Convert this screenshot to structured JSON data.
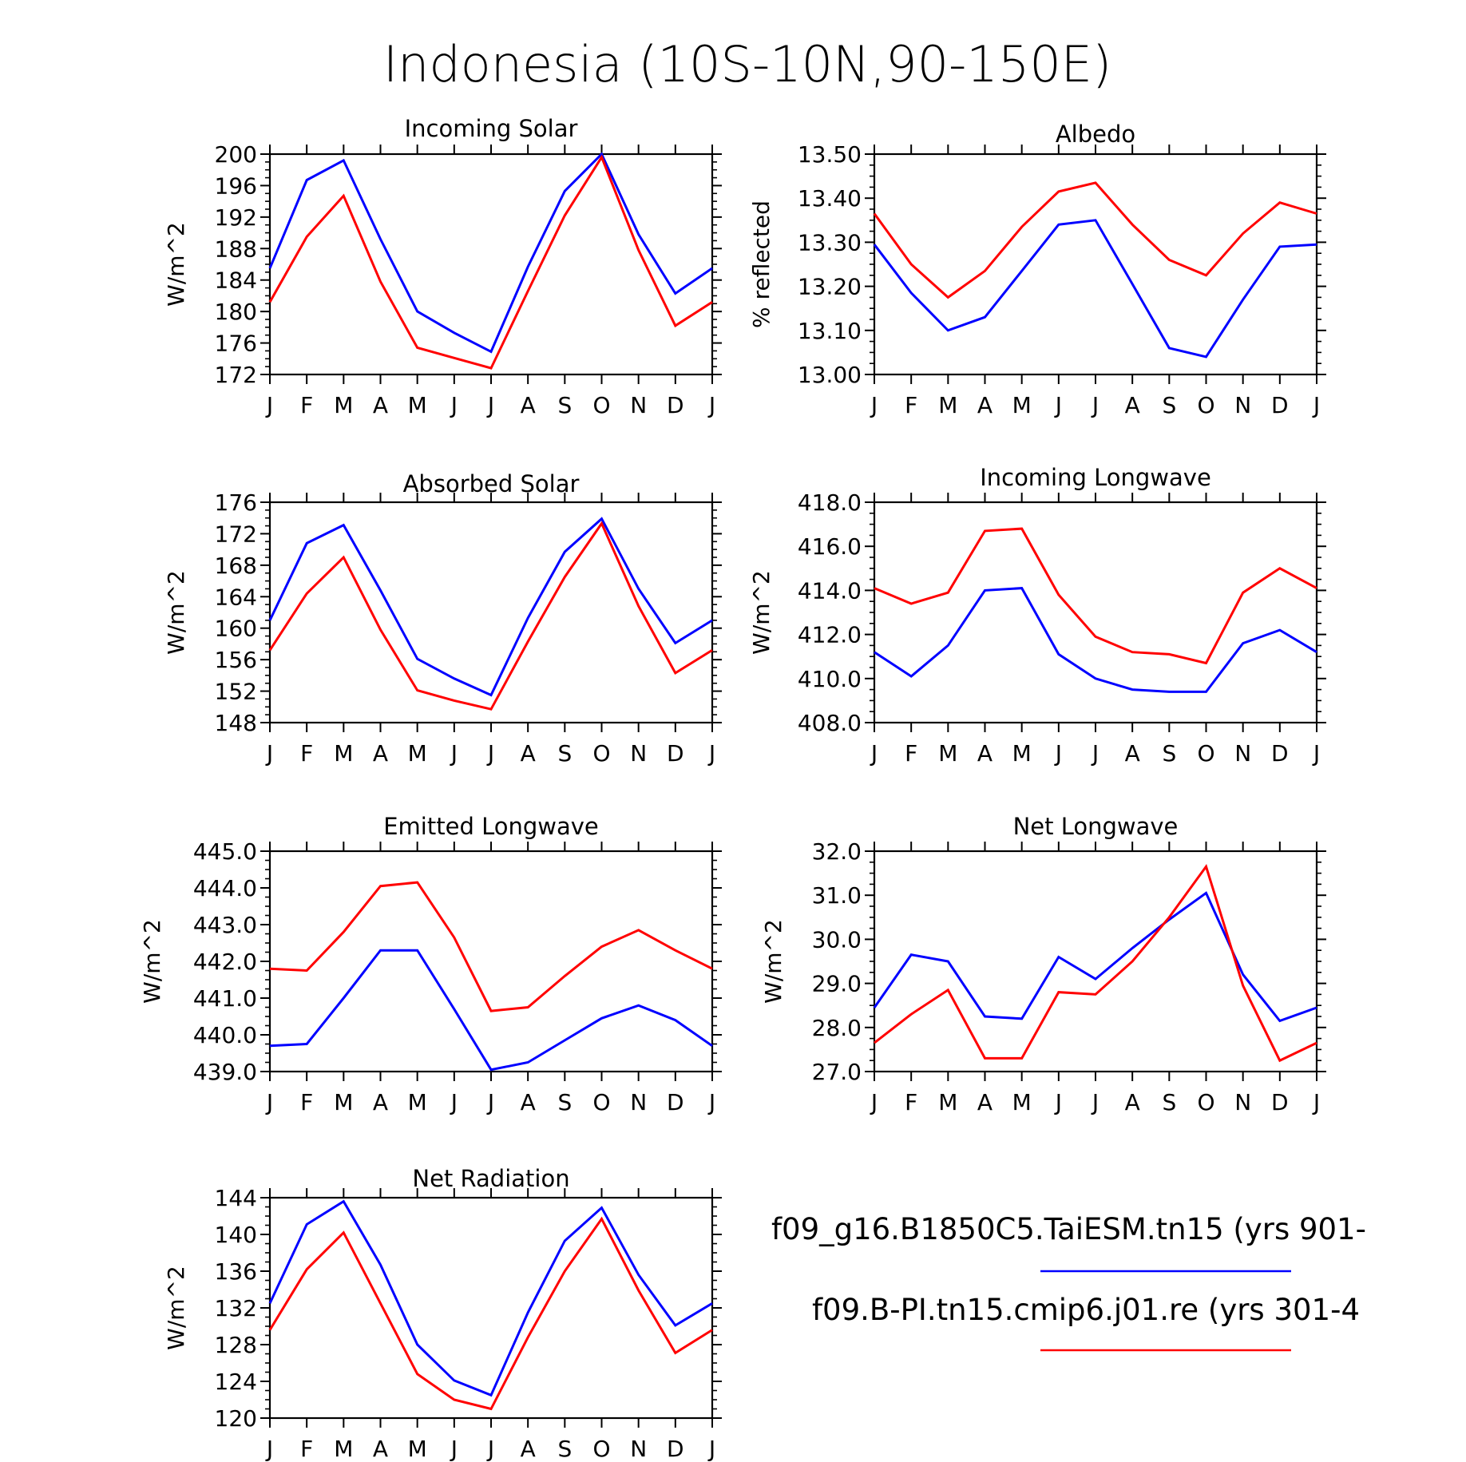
{
  "title": "Indonesia (10S-10N,90-150E)",
  "month_labels": [
    "J",
    "F",
    "M",
    "A",
    "M",
    "J",
    "J",
    "A",
    "S",
    "O",
    "N",
    "D",
    "J"
  ],
  "legend": [
    {
      "label": "f09_g16.B1850C5.TaiESM.tn15 (yrs 901-",
      "color": "#0000ff"
    },
    {
      "label": "f09.B-PI.tn15.cmip6.j01.re (yrs 301-4",
      "color": "#ff0000"
    }
  ],
  "colors": {
    "blue": "#0000ff",
    "red": "#ff0000",
    "axis": "#000000"
  },
  "chart_data": [
    {
      "type": "line",
      "title": "Incoming Solar",
      "ylabel": "W/m^2",
      "ylim": [
        172,
        200
      ],
      "yticks": [
        "172",
        "176",
        "180",
        "184",
        "188",
        "192",
        "196",
        "200"
      ],
      "categories": [
        "J",
        "F",
        "M",
        "A",
        "M",
        "J",
        "J",
        "A",
        "S",
        "O",
        "N",
        "D",
        "J"
      ],
      "series": [
        {
          "name": "f09_g16.B1850C5.TaiESM.tn15",
          "color": "#0000ff",
          "values": [
            185.5,
            196.7,
            199.2,
            189.2,
            180.0,
            177.3,
            174.9,
            185.7,
            195.3,
            200.0,
            189.8,
            182.3,
            185.5
          ]
        },
        {
          "name": "f09.B-PI.tn15.cmip6.j01.re",
          "color": "#ff0000",
          "values": [
            181.2,
            189.5,
            194.7,
            183.8,
            175.4,
            174.1,
            172.8,
            182.6,
            192.2,
            199.6,
            187.8,
            178.2,
            181.2
          ]
        }
      ]
    },
    {
      "type": "line",
      "title": "Albedo",
      "ylabel": "% reflected",
      "ylim": [
        13.0,
        13.5
      ],
      "yticks": [
        "13.00",
        "13.10",
        "13.20",
        "13.30",
        "13.40",
        "13.50"
      ],
      "categories": [
        "J",
        "F",
        "M",
        "A",
        "M",
        "J",
        "J",
        "A",
        "S",
        "O",
        "N",
        "D",
        "J"
      ],
      "series": [
        {
          "name": "f09_g16.B1850C5.TaiESM.tn15",
          "color": "#0000ff",
          "values": [
            13.295,
            13.185,
            13.1,
            13.13,
            13.235,
            13.34,
            13.35,
            13.205,
            13.06,
            13.04,
            13.17,
            13.29,
            13.295
          ]
        },
        {
          "name": "f09.B-PI.tn15.cmip6.j01.re",
          "color": "#ff0000",
          "values": [
            13.365,
            13.25,
            13.175,
            13.235,
            13.335,
            13.415,
            13.435,
            13.34,
            13.26,
            13.225,
            13.32,
            13.39,
            13.365
          ]
        }
      ]
    },
    {
      "type": "line",
      "title": "Absorbed Solar",
      "ylabel": "W/m^2",
      "ylim": [
        148,
        176
      ],
      "yticks": [
        "148",
        "152",
        "156",
        "160",
        "164",
        "168",
        "172",
        "176"
      ],
      "categories": [
        "J",
        "F",
        "M",
        "A",
        "M",
        "J",
        "J",
        "A",
        "S",
        "O",
        "N",
        "D",
        "J"
      ],
      "series": [
        {
          "name": "f09_g16.B1850C5.TaiESM.tn15",
          "color": "#0000ff",
          "values": [
            161.0,
            170.8,
            173.1,
            164.8,
            156.1,
            153.6,
            151.5,
            161.3,
            169.7,
            173.9,
            165.0,
            158.1,
            161.0
          ]
        },
        {
          "name": "f09.B-PI.tn15.cmip6.j01.re",
          "color": "#ff0000",
          "values": [
            157.2,
            164.4,
            169.0,
            159.8,
            152.1,
            150.8,
            149.7,
            158.3,
            166.5,
            173.3,
            162.8,
            154.3,
            157.2
          ]
        }
      ]
    },
    {
      "type": "line",
      "title": "Incoming Longwave",
      "ylabel": "W/m^2",
      "ylim": [
        408.0,
        418.0
      ],
      "yticks": [
        "408.0",
        "410.0",
        "412.0",
        "414.0",
        "416.0",
        "418.0"
      ],
      "categories": [
        "J",
        "F",
        "M",
        "A",
        "M",
        "J",
        "J",
        "A",
        "S",
        "O",
        "N",
        "D",
        "J"
      ],
      "series": [
        {
          "name": "f09_g16.B1850C5.TaiESM.tn15",
          "color": "#0000ff",
          "values": [
            411.2,
            410.1,
            411.5,
            414.0,
            414.1,
            411.1,
            410.0,
            409.5,
            409.4,
            409.4,
            411.6,
            412.2,
            411.2
          ]
        },
        {
          "name": "f09.B-PI.tn15.cmip6.j01.re",
          "color": "#ff0000",
          "values": [
            414.1,
            413.4,
            413.9,
            416.7,
            416.8,
            413.8,
            411.9,
            411.2,
            411.1,
            410.7,
            413.9,
            415.0,
            414.1
          ]
        }
      ]
    },
    {
      "type": "line",
      "title": "Emitted Longwave",
      "ylabel": "W/m^2",
      "ylim": [
        439.0,
        445.0
      ],
      "yticks": [
        "439.0",
        "440.0",
        "441.0",
        "442.0",
        "443.0",
        "444.0",
        "445.0"
      ],
      "categories": [
        "J",
        "F",
        "M",
        "A",
        "M",
        "J",
        "J",
        "A",
        "S",
        "O",
        "N",
        "D",
        "J"
      ],
      "series": [
        {
          "name": "f09_g16.B1850C5.TaiESM.tn15",
          "color": "#0000ff",
          "values": [
            439.7,
            439.75,
            441.0,
            442.3,
            442.3,
            440.7,
            439.05,
            439.25,
            439.85,
            440.45,
            440.8,
            440.4,
            439.7
          ]
        },
        {
          "name": "f09.B-PI.tn15.cmip6.j01.re",
          "color": "#ff0000",
          "values": [
            441.8,
            441.75,
            442.8,
            444.05,
            444.15,
            442.65,
            440.65,
            440.75,
            441.6,
            442.4,
            442.85,
            442.3,
            441.8
          ]
        }
      ]
    },
    {
      "type": "line",
      "title": "Net Longwave",
      "ylabel": "W/m^2",
      "ylim": [
        27.0,
        32.0
      ],
      "yticks": [
        "27.0",
        "28.0",
        "29.0",
        "30.0",
        "31.0",
        "32.0"
      ],
      "categories": [
        "J",
        "F",
        "M",
        "A",
        "M",
        "J",
        "J",
        "A",
        "S",
        "O",
        "N",
        "D",
        "J"
      ],
      "series": [
        {
          "name": "f09_g16.B1850C5.TaiESM.tn15",
          "color": "#0000ff",
          "values": [
            28.45,
            29.65,
            29.5,
            28.25,
            28.2,
            29.6,
            29.1,
            29.8,
            30.45,
            31.05,
            29.2,
            28.15,
            28.45
          ]
        },
        {
          "name": "f09.B-PI.tn15.cmip6.j01.re",
          "color": "#ff0000",
          "values": [
            27.65,
            28.3,
            28.85,
            27.3,
            27.3,
            28.8,
            28.75,
            29.5,
            30.5,
            31.65,
            28.95,
            27.25,
            27.65
          ]
        }
      ]
    },
    {
      "type": "line",
      "title": "Net Radiation",
      "ylabel": "W/m^2",
      "ylim": [
        120,
        144
      ],
      "yticks": [
        "120",
        "124",
        "128",
        "132",
        "136",
        "140",
        "144"
      ],
      "categories": [
        "J",
        "F",
        "M",
        "A",
        "M",
        "J",
        "J",
        "A",
        "S",
        "O",
        "N",
        "D",
        "J"
      ],
      "series": [
        {
          "name": "f09_g16.B1850C5.TaiESM.tn15",
          "color": "#0000ff",
          "values": [
            132.5,
            141.1,
            143.6,
            136.7,
            128.0,
            124.1,
            122.5,
            131.5,
            139.3,
            142.9,
            135.6,
            130.1,
            132.5
          ]
        },
        {
          "name": "f09.B-PI.tn15.cmip6.j01.re",
          "color": "#ff0000",
          "values": [
            129.6,
            136.2,
            140.2,
            132.5,
            124.8,
            122.0,
            121.0,
            128.8,
            136.0,
            141.7,
            133.9,
            127.1,
            129.6
          ]
        }
      ]
    }
  ]
}
